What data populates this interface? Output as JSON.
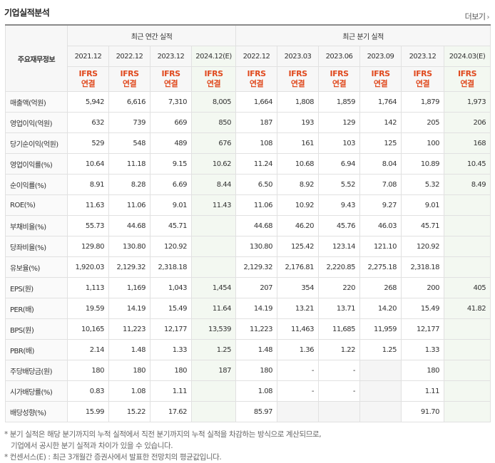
{
  "title": "기업실적분석",
  "more_label": "더보기",
  "header": {
    "corner": "주요재무정보",
    "annual_group": "최근 연간 실적",
    "quarter_group": "최근 분기 실적",
    "annual_periods": [
      "2021.12",
      "2022.12",
      "2023.12",
      "2024.12(E)"
    ],
    "quarter_periods": [
      "2022.12",
      "2023.03",
      "2023.06",
      "2023.09",
      "2023.12",
      "2024.03(E)"
    ],
    "basis_top": "IFRS",
    "basis_bottom": "연결"
  },
  "rows": [
    {
      "label": "매출액(억원)",
      "a": [
        "5,942",
        "6,616",
        "7,310",
        "8,005"
      ],
      "q": [
        "1,664",
        "1,808",
        "1,859",
        "1,764",
        "1,879",
        "1,973"
      ]
    },
    {
      "label": "영업이익(억원)",
      "a": [
        "632",
        "739",
        "669",
        "850"
      ],
      "q": [
        "187",
        "193",
        "129",
        "142",
        "205",
        "206"
      ]
    },
    {
      "label": "당기순이익(억원)",
      "a": [
        "529",
        "548",
        "489",
        "676"
      ],
      "q": [
        "108",
        "161",
        "103",
        "125",
        "100",
        "168"
      ]
    },
    {
      "label": "영업이익률(%)",
      "a": [
        "10.64",
        "11.18",
        "9.15",
        "10.62"
      ],
      "q": [
        "11.24",
        "10.68",
        "6.94",
        "8.04",
        "10.89",
        "10.45"
      ]
    },
    {
      "label": "순이익률(%)",
      "a": [
        "8.91",
        "8.28",
        "6.69",
        "8.44"
      ],
      "q": [
        "6.50",
        "8.92",
        "5.52",
        "7.08",
        "5.32",
        "8.49"
      ]
    },
    {
      "label": "ROE(%)",
      "a": [
        "11.63",
        "11.06",
        "9.01",
        "11.43"
      ],
      "q": [
        "11.06",
        "10.92",
        "9.43",
        "9.27",
        "9.01",
        ""
      ]
    },
    {
      "label": "부채비율(%)",
      "a": [
        "55.73",
        "44.68",
        "45.71",
        ""
      ],
      "q": [
        "44.68",
        "46.20",
        "45.76",
        "46.03",
        "45.71",
        ""
      ]
    },
    {
      "label": "당좌비율(%)",
      "a": [
        "129.80",
        "130.80",
        "120.92",
        ""
      ],
      "q": [
        "130.80",
        "125.42",
        "123.14",
        "121.10",
        "120.92",
        ""
      ]
    },
    {
      "label": "유보율(%)",
      "a": [
        "1,920.03",
        "2,129.32",
        "2,318.18",
        ""
      ],
      "q": [
        "2,129.32",
        "2,176.81",
        "2,220.85",
        "2,275.18",
        "2,318.18",
        ""
      ]
    },
    {
      "label": "EPS(원)",
      "a": [
        "1,113",
        "1,169",
        "1,043",
        "1,454"
      ],
      "q": [
        "207",
        "354",
        "220",
        "268",
        "200",
        "405"
      ]
    },
    {
      "label": "PER(배)",
      "a": [
        "19.59",
        "14.19",
        "15.49",
        "11.64"
      ],
      "q": [
        "14.19",
        "13.21",
        "13.71",
        "14.20",
        "15.49",
        "41.82"
      ]
    },
    {
      "label": "BPS(원)",
      "a": [
        "10,165",
        "11,223",
        "12,177",
        "13,539"
      ],
      "q": [
        "11,223",
        "11,463",
        "11,685",
        "11,959",
        "12,177",
        ""
      ]
    },
    {
      "label": "PBR(배)",
      "a": [
        "2.14",
        "1.48",
        "1.33",
        "1.25"
      ],
      "q": [
        "1.48",
        "1.36",
        "1.22",
        "1.25",
        "1.33",
        ""
      ]
    },
    {
      "label": "주당배당금(원)",
      "a": [
        "180",
        "180",
        "180",
        "187"
      ],
      "q": [
        "180",
        "-",
        "-",
        "",
        "180",
        ""
      ]
    },
    {
      "label": "시가배당률(%)",
      "a": [
        "0.83",
        "1.08",
        "1.11",
        ""
      ],
      "q": [
        "1.08",
        "-",
        "-",
        "",
        "1.11",
        ""
      ]
    },
    {
      "label": "배당성향(%)",
      "a": [
        "15.99",
        "15.22",
        "17.62",
        ""
      ],
      "q": [
        "85.97",
        "",
        "",
        "",
        "91.70",
        ""
      ]
    }
  ],
  "notes": [
    "* 분기 실적은 해당 분기까지의 누적 실적에서 직전 분기까지의 누적 실적을 차감하는 방식으로 계산되므로,",
    "기업에서 공시한 분기 실적과 차이가 있을 수 있습니다.",
    "* 컨센서스(E) : 최근 3개월간 증권사에서 발표한 전망치의 평균값입니다."
  ]
}
